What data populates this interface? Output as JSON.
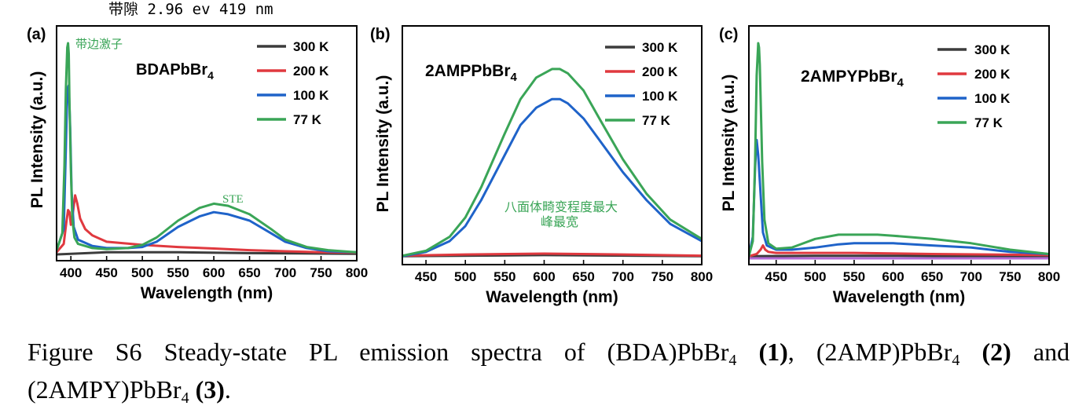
{
  "header_note": "带隙 2.96 ev  419 nm",
  "caption": {
    "fig": "Figure S6",
    "body": "Steady-state PL emission spectra of",
    "c1": "(BDA)PbBr",
    "n1": "(1)",
    "c2": "(2AMP)PbBr",
    "n2": "(2)",
    "and": "and",
    "c3": "(2AMPY)PbBr",
    "n3": "(3)",
    "sub": "4"
  },
  "colors": {
    "s300": "#3c3c3c",
    "s200": "#e0393f",
    "s100": "#1f63c9",
    "s77": "#3aa557",
    "annot": "#3aa557",
    "extra": "#b36bd6"
  },
  "chart_data": [
    {
      "type": "line",
      "panel": "(a)",
      "compound": "BDAPbBr",
      "compound_sub": "4",
      "xlabel": "Wavelength (nm)",
      "ylabel": "PL Intensity (a.u.)",
      "xlim": [
        380,
        800
      ],
      "ylim": [
        0,
        1.0
      ],
      "xticks": [
        400,
        450,
        500,
        550,
        600,
        650,
        700,
        750,
        800
      ],
      "legend_position": "top-right",
      "annotations": [
        "带边激子",
        "STE"
      ],
      "series": [
        {
          "name": "300 K",
          "color": "#3c3c3c",
          "x": [
            380,
            450,
            550,
            650,
            800
          ],
          "y": [
            0.0,
            0.01,
            0.01,
            0.006,
            0.003
          ]
        },
        {
          "name": "200 K",
          "color": "#e0393f",
          "x": [
            380,
            390,
            394,
            396,
            398,
            400,
            403,
            406,
            409,
            413,
            420,
            430,
            450,
            500,
            550,
            600,
            650,
            700,
            750,
            800
          ],
          "y": [
            0.01,
            0.05,
            0.16,
            0.21,
            0.2,
            0.14,
            0.2,
            0.28,
            0.24,
            0.17,
            0.12,
            0.09,
            0.06,
            0.045,
            0.035,
            0.028,
            0.02,
            0.015,
            0.01,
            0.008
          ]
        },
        {
          "name": "100 K",
          "color": "#1f63c9",
          "x": [
            380,
            390,
            393,
            395,
            397,
            399,
            401,
            404,
            410,
            430,
            450,
            480,
            500,
            520,
            550,
            580,
            600,
            620,
            650,
            680,
            700,
            730,
            760,
            800
          ],
          "y": [
            0.02,
            0.12,
            0.5,
            0.78,
            0.8,
            0.6,
            0.3,
            0.13,
            0.07,
            0.04,
            0.03,
            0.03,
            0.035,
            0.06,
            0.13,
            0.18,
            0.2,
            0.19,
            0.16,
            0.1,
            0.06,
            0.03,
            0.015,
            0.01
          ]
        },
        {
          "name": "77 K",
          "color": "#3aa557",
          "x": [
            380,
            388,
            391,
            393,
            395,
            396,
            397,
            398,
            400,
            402,
            405,
            410,
            430,
            450,
            480,
            500,
            520,
            550,
            580,
            600,
            620,
            650,
            680,
            700,
            730,
            760,
            800
          ],
          "y": [
            0.02,
            0.1,
            0.42,
            0.78,
            0.98,
            1.0,
            0.95,
            0.72,
            0.4,
            0.17,
            0.08,
            0.05,
            0.03,
            0.025,
            0.03,
            0.045,
            0.08,
            0.16,
            0.22,
            0.24,
            0.23,
            0.19,
            0.12,
            0.07,
            0.035,
            0.02,
            0.01
          ]
        }
      ]
    },
    {
      "type": "line",
      "panel": "(b)",
      "compound": "2AMPPbBr",
      "compound_sub": "4",
      "xlabel": "Wavelength (nm)",
      "ylabel": "PL Intensity (a.u.)",
      "xlim": [
        420,
        800
      ],
      "ylim": [
        0,
        1.0
      ],
      "xticks": [
        450,
        500,
        550,
        600,
        650,
        700,
        750,
        800
      ],
      "legend_position": "top-right",
      "annotations": [
        "八面体畸变程度最大",
        "峰最宽"
      ],
      "series": [
        {
          "name": "300 K",
          "color": "#3c3c3c",
          "x": [
            420,
            600,
            800
          ],
          "y": [
            0.01,
            0.015,
            0.01
          ]
        },
        {
          "name": "200 K",
          "color": "#e0393f",
          "x": [
            420,
            500,
            600,
            700,
            800
          ],
          "y": [
            0.012,
            0.018,
            0.022,
            0.018,
            0.012
          ]
        },
        {
          "name": "100 K",
          "color": "#1f63c9",
          "x": [
            420,
            450,
            480,
            500,
            520,
            550,
            570,
            590,
            610,
            620,
            630,
            650,
            670,
            700,
            730,
            760,
            800
          ],
          "y": [
            0.01,
            0.03,
            0.08,
            0.15,
            0.27,
            0.48,
            0.62,
            0.7,
            0.74,
            0.74,
            0.72,
            0.65,
            0.55,
            0.4,
            0.27,
            0.16,
            0.08
          ]
        },
        {
          "name": "77 K",
          "color": "#3aa557",
          "x": [
            420,
            450,
            480,
            500,
            520,
            550,
            570,
            590,
            610,
            620,
            630,
            650,
            670,
            700,
            730,
            760,
            800
          ],
          "y": [
            0.012,
            0.035,
            0.1,
            0.19,
            0.33,
            0.58,
            0.74,
            0.84,
            0.88,
            0.88,
            0.86,
            0.78,
            0.65,
            0.46,
            0.3,
            0.18,
            0.09
          ]
        }
      ]
    },
    {
      "type": "line",
      "panel": "(c)",
      "compound": "2AMPYPbBr",
      "compound_sub": "4",
      "xlabel": "Wavelength (nm)",
      "ylabel": "PL Intensity (a.u.)",
      "xlim": [
        415,
        800
      ],
      "ylim": [
        0,
        1.0
      ],
      "xticks": [
        450,
        500,
        550,
        600,
        650,
        700,
        750,
        800
      ],
      "legend_position": "top-right",
      "series": [
        {
          "name": "300 K",
          "color": "#3c3c3c",
          "x": [
            415,
            500,
            600,
            700,
            800
          ],
          "y": [
            0.01,
            0.012,
            0.012,
            0.01,
            0.008
          ]
        },
        {
          "name": "200 K",
          "color": "#e0393f",
          "x": [
            415,
            425,
            430,
            433,
            436,
            440,
            450,
            480,
            550,
            650,
            800
          ],
          "y": [
            0.01,
            0.02,
            0.04,
            0.06,
            0.04,
            0.03,
            0.025,
            0.025,
            0.025,
            0.02,
            0.015
          ]
        },
        {
          "name": "100 K",
          "color": "#1f63c9",
          "x": [
            415,
            420,
            423,
            425,
            427,
            430,
            433,
            438,
            450,
            470,
            500,
            530,
            550,
            580,
            600,
            650,
            700,
            750,
            800
          ],
          "y": [
            0.01,
            0.1,
            0.42,
            0.55,
            0.48,
            0.3,
            0.12,
            0.06,
            0.04,
            0.04,
            0.05,
            0.065,
            0.07,
            0.07,
            0.07,
            0.06,
            0.05,
            0.03,
            0.02
          ]
        },
        {
          "name": "77 K",
          "color": "#3aa557",
          "x": [
            415,
            420,
            423,
            425,
            427,
            428,
            429,
            430,
            432,
            435,
            440,
            450,
            470,
            500,
            530,
            550,
            580,
            600,
            650,
            700,
            750,
            800
          ],
          "y": [
            0.01,
            0.08,
            0.45,
            0.85,
            1.0,
            0.98,
            0.9,
            0.75,
            0.45,
            0.18,
            0.07,
            0.045,
            0.05,
            0.09,
            0.11,
            0.11,
            0.11,
            0.105,
            0.09,
            0.07,
            0.04,
            0.02
          ]
        },
        {
          "color": "#b36bd6",
          "x": [
            415,
            800
          ],
          "y": [
            0.0,
            0.0
          ]
        }
      ]
    }
  ]
}
